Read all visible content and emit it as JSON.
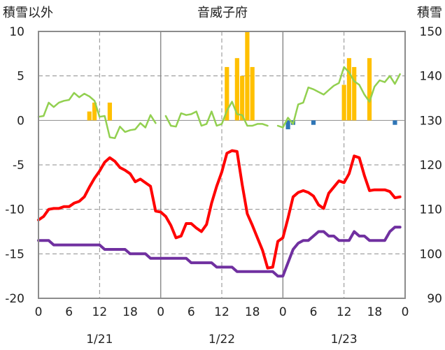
{
  "chart_data": {
    "type": "line",
    "title": "音威子府",
    "ylabel_left": "積雪以外",
    "ylabel_right": "積雪",
    "left_axis": {
      "min": -20,
      "max": 10,
      "ticks": [
        10,
        5,
        0,
        -5,
        -10,
        -15,
        -20
      ]
    },
    "right_axis": {
      "min": 90,
      "max": 150,
      "ticks": [
        150,
        140,
        130,
        120,
        110,
        100,
        90
      ]
    },
    "x_axis": {
      "min": 0,
      "max": 72,
      "tick_hours": [
        0,
        6,
        12,
        18,
        24,
        30,
        36,
        42,
        48,
        54,
        60,
        66,
        72
      ],
      "tick_labels": [
        "0",
        "6",
        "12",
        "18",
        "0",
        "6",
        "12",
        "18",
        "0",
        "6",
        "12",
        "18",
        "0"
      ]
    },
    "day_labels": [
      {
        "hour": 12,
        "label": "1/21"
      },
      {
        "hour": 36,
        "label": "1/22"
      },
      {
        "hour": 60,
        "label": "1/23"
      }
    ],
    "series": [
      {
        "key": "red",
        "color": "#ff0000",
        "axis": "left",
        "x": [
          0,
          1,
          2,
          3,
          4,
          5,
          6,
          7,
          8,
          9,
          10,
          11,
          12,
          13,
          14,
          15,
          16,
          17,
          18,
          19,
          20,
          21,
          22,
          23,
          24,
          25,
          26,
          27,
          28,
          29,
          30,
          31,
          32,
          33,
          34,
          35,
          36,
          37,
          38,
          39,
          40,
          41,
          42,
          43,
          44,
          45,
          46,
          47,
          48,
          49,
          50,
          51,
          52,
          53,
          54,
          55,
          56,
          57,
          58,
          59,
          60,
          61,
          62,
          63,
          64,
          65,
          66,
          67,
          68,
          69,
          70,
          71
        ],
        "values": [
          -11.2,
          -10.8,
          -10,
          -9.9,
          -9.9,
          -9.7,
          -9.7,
          -9.3,
          -9.1,
          -8.6,
          -7.5,
          -6.5,
          -5.7,
          -4.7,
          -4.2,
          -4.6,
          -5.3,
          -5.6,
          -6,
          -6.9,
          -6.6,
          -7,
          -7.4,
          -10.2,
          -10.3,
          -10.8,
          -11.8,
          -13.2,
          -13,
          -11.6,
          -11.6,
          -12.1,
          -12.5,
          -11.7,
          -9.3,
          -7.4,
          -5.8,
          -3.7,
          -3.4,
          -3.5,
          -7.2,
          -10.5,
          -11.8,
          -13.2,
          -14.6,
          -16.6,
          -16.5,
          -13.6,
          -13.2,
          -11,
          -8.6,
          -8.1,
          -7.9,
          -8.1,
          -8.5,
          -9.5,
          -9.9,
          -8.2,
          -7.5,
          -6.8,
          -7,
          -6,
          -4,
          -4.2,
          -6.2,
          -7.9,
          -7.8,
          -7.8,
          -7.8,
          -8,
          -8.7,
          -8.6
        ]
      },
      {
        "key": "purple",
        "color": "#7030a0",
        "axis": "left",
        "x": [
          0,
          1,
          2,
          3,
          4,
          5,
          6,
          7,
          8,
          9,
          10,
          11,
          12,
          13,
          14,
          15,
          16,
          17,
          18,
          19,
          20,
          21,
          22,
          23,
          24,
          25,
          26,
          27,
          28,
          29,
          30,
          31,
          32,
          33,
          34,
          35,
          36,
          37,
          38,
          39,
          40,
          41,
          42,
          43,
          44,
          45,
          46,
          47,
          48,
          49,
          50,
          51,
          52,
          53,
          54,
          55,
          56,
          57,
          58,
          59,
          60,
          61,
          62,
          63,
          64,
          65,
          66,
          67,
          68,
          69,
          70,
          71
        ],
        "values": [
          -13.5,
          -13.5,
          -13.5,
          -14,
          -14,
          -14,
          -14,
          -14,
          -14,
          -14,
          -14,
          -14,
          -14,
          -14.5,
          -14.5,
          -14.5,
          -14.5,
          -14.5,
          -15,
          -15,
          -15,
          -15,
          -15.5,
          -15.5,
          -15.5,
          -15.5,
          -15.5,
          -15.5,
          -15.5,
          -15.5,
          -16,
          -16,
          -16,
          -16,
          -16,
          -16.5,
          -16.5,
          -16.5,
          -16.5,
          -17,
          -17,
          -17,
          -17,
          -17,
          -17,
          -17,
          -17,
          -17.5,
          -17.5,
          -16,
          -14.5,
          -13.8,
          -13.5,
          -13.5,
          -13,
          -12.5,
          -12.5,
          -13,
          -13,
          -13.5,
          -13.5,
          -13.5,
          -12.5,
          -13,
          -13,
          -13.5,
          -13.5,
          -13.5,
          -13.5,
          -12.5,
          -12,
          -12
        ]
      },
      {
        "key": "green",
        "color": "#92d050",
        "axis": "right",
        "x": [
          0,
          1,
          2,
          3,
          4,
          5,
          6,
          7,
          8,
          9,
          10,
          11,
          12,
          13,
          14,
          15,
          16,
          17,
          18,
          19,
          20,
          21,
          22,
          23,
          null,
          25,
          26,
          27,
          28,
          29,
          30,
          31,
          32,
          33,
          34,
          35,
          36,
          37,
          38,
          39,
          40,
          41,
          42,
          43,
          44,
          45,
          null,
          47,
          48,
          49,
          50,
          51,
          52,
          53,
          54,
          55,
          56,
          57,
          58,
          59,
          60,
          61,
          62,
          63,
          64,
          65,
          66,
          67,
          68,
          69,
          70,
          71
        ],
        "values": [
          130.8,
          131,
          134,
          133,
          134,
          134.4,
          134.6,
          136.2,
          135.2,
          136,
          135.4,
          134.4,
          130.8,
          131,
          126.2,
          126,
          128.6,
          127.4,
          127.8,
          128,
          129.4,
          128.4,
          131.2,
          129.4,
          null,
          131,
          128.8,
          128.6,
          131.6,
          131.2,
          131.4,
          132,
          128.8,
          129.2,
          132,
          128.8,
          129.2,
          132.2,
          134.2,
          131.4,
          131.2,
          128.8,
          128.8,
          129.2,
          129.2,
          128.8,
          null,
          128.8,
          128.4,
          130.6,
          129.2,
          133.6,
          134,
          137.4,
          137,
          136.4,
          135.8,
          136.8,
          137.8,
          138.4,
          142,
          140.8,
          138.8,
          138,
          135.8,
          134.2,
          137.6,
          139,
          138.6,
          140,
          138.2,
          140.4
        ]
      }
    ],
    "bars": {
      "axis": "left",
      "series": [
        {
          "key": "orange",
          "color": "#ffc000",
          "x": [
            10,
            11,
            14,
            37,
            39,
            40,
            41,
            42,
            60,
            61,
            62,
            65
          ],
          "values": [
            1,
            2,
            2,
            6,
            7,
            5,
            10,
            6,
            4,
            7,
            6,
            7
          ]
        },
        {
          "key": "blue",
          "color": "#2e75b6",
          "x": [
            49,
            50,
            54,
            70
          ],
          "values": [
            -1,
            -0.5,
            -0.5,
            -0.5
          ]
        }
      ]
    }
  }
}
